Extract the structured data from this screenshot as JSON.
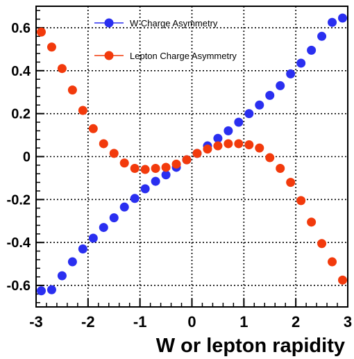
{
  "chart_data": {
    "type": "scatter",
    "title": "",
    "xlabel": "W or lepton rapidity",
    "ylabel": "",
    "xlim": [
      -3,
      3
    ],
    "ylim": [
      -0.7,
      0.7
    ],
    "x_ticks": [
      -3,
      -2,
      -1,
      0,
      1,
      2,
      3
    ],
    "x_tick_labels": [
      "-3",
      "-2",
      "-1",
      "0",
      "1",
      "2",
      "3"
    ],
    "y_ticks": [
      -0.6,
      -0.4,
      -0.2,
      0,
      0.2,
      0.4,
      0.6
    ],
    "y_tick_labels": [
      "-0.6",
      "-0.4",
      "-0.2",
      "0",
      "0.2",
      "0.4",
      "0.6"
    ],
    "grid": true,
    "legend_position": "top-center",
    "series": [
      {
        "name": "W Charge Asymmetry",
        "color": "#2a2ff0",
        "x": [
          -2.9,
          -2.7,
          -2.5,
          -2.3,
          -2.1,
          -1.9,
          -1.7,
          -1.5,
          -1.3,
          -1.1,
          -0.9,
          -0.7,
          -0.5,
          -0.3,
          -0.1,
          0.1,
          0.3,
          0.5,
          0.7,
          0.9,
          1.1,
          1.3,
          1.5,
          1.7,
          1.9,
          2.1,
          2.3,
          2.5,
          2.7,
          2.9
        ],
        "y": [
          -0.625,
          -0.62,
          -0.555,
          -0.49,
          -0.43,
          -0.38,
          -0.33,
          -0.285,
          -0.235,
          -0.195,
          -0.15,
          -0.115,
          -0.085,
          -0.05,
          -0.015,
          0.015,
          0.05,
          0.085,
          0.12,
          0.16,
          0.2,
          0.24,
          0.285,
          0.33,
          0.385,
          0.435,
          0.495,
          0.56,
          0.625,
          0.645
        ]
      },
      {
        "name": "Lepton Charge Asymmetry",
        "color": "#f23a0c",
        "x": [
          -2.9,
          -2.7,
          -2.5,
          -2.3,
          -2.1,
          -1.9,
          -1.7,
          -1.5,
          -1.3,
          -1.1,
          -0.9,
          -0.7,
          -0.5,
          -0.3,
          -0.1,
          0.1,
          0.3,
          0.5,
          0.7,
          0.9,
          1.1,
          1.3,
          1.5,
          1.7,
          1.9,
          2.1,
          2.3,
          2.5,
          2.7,
          2.9
        ],
        "y": [
          0.58,
          0.51,
          0.41,
          0.31,
          0.215,
          0.13,
          0.06,
          0.015,
          -0.03,
          -0.055,
          -0.06,
          -0.055,
          -0.05,
          -0.035,
          -0.015,
          0.015,
          0.035,
          0.05,
          0.06,
          0.06,
          0.055,
          0.04,
          -0.005,
          -0.055,
          -0.12,
          -0.205,
          -0.305,
          -0.405,
          -0.49,
          -0.575
        ]
      }
    ]
  }
}
